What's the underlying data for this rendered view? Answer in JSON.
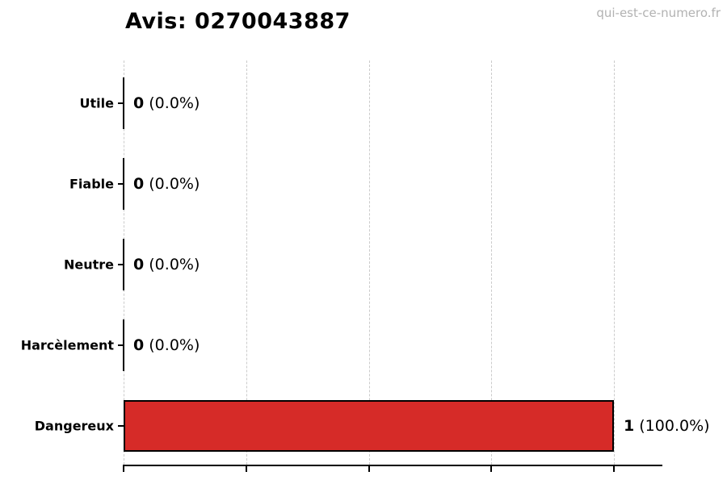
{
  "chart_data": {
    "type": "bar",
    "orientation": "horizontal",
    "title": "Avis: 0270043887",
    "watermark": "qui-est-ce-numero.fr",
    "categories": [
      "Utile",
      "Fiable",
      "Neutre",
      "Harcèlement",
      "Dangereux"
    ],
    "values": [
      0,
      0,
      0,
      0,
      1
    ],
    "labels": [
      {
        "count": "0",
        "pct": "(0.0%)"
      },
      {
        "count": "0",
        "pct": "(0.0%)"
      },
      {
        "count": "0",
        "pct": "(0.0%)"
      },
      {
        "count": "0",
        "pct": "(0.0%)"
      },
      {
        "count": "1",
        "pct": "(100.0%)"
      }
    ],
    "xlabel": "",
    "ylabel": "",
    "xlim": [
      0,
      1.1
    ],
    "xticks": [
      0,
      0.25,
      0.5,
      0.75,
      1.0
    ],
    "xtick_labels_visible": false,
    "grid": "vertical-dashed",
    "legend": false,
    "bar_color": "#d62b28",
    "bar_edge_color": "#000000",
    "grid_color": "#cbcbcb",
    "watermark_color": "#b2b2b2"
  }
}
